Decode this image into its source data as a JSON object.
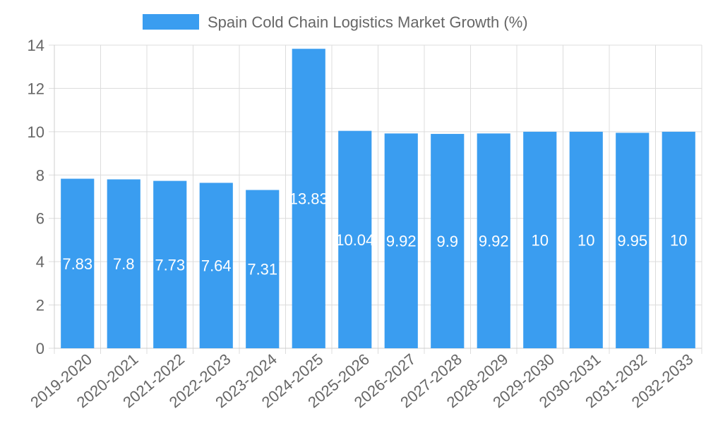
{
  "chart_data": {
    "type": "bar",
    "title": "Spain Cold Chain Logistics Market Growth (%)",
    "legend": {
      "label": "Spain Cold Chain Logistics Market Growth (%)",
      "color": "#3a9df0",
      "position": "top"
    },
    "categories": [
      "2019-2020",
      "2020-2021",
      "2021-2022",
      "2022-2023",
      "2023-2024",
      "2024-2025",
      "2025-2026",
      "2026-2027",
      "2027-2028",
      "2028-2029",
      "2029-2030",
      "2030-2031",
      "2031-2032",
      "2032-2033"
    ],
    "series": [
      {
        "name": "Spain Cold Chain Logistics Market Growth (%)",
        "values": [
          7.83,
          7.8,
          7.73,
          7.64,
          7.31,
          13.83,
          10.04,
          9.92,
          9.9,
          9.92,
          10,
          10,
          9.95,
          10
        ]
      }
    ],
    "xlabel": "",
    "ylabel": "",
    "ylim": [
      0,
      14
    ],
    "yticks": [
      0,
      2,
      4,
      6,
      8,
      10,
      12,
      14
    ],
    "grid": true,
    "bar_color": "#3a9df0"
  }
}
